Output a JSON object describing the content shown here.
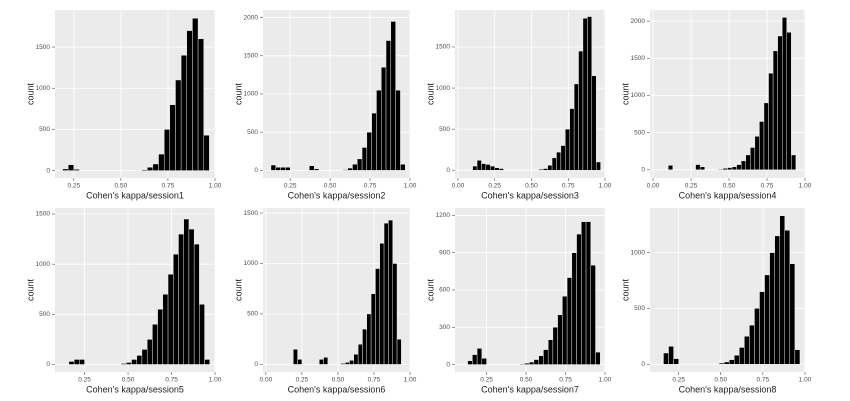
{
  "chart_data": [
    {
      "type": "histogram",
      "xlabel": "Cohen's kappa/session1",
      "ylabel": "count",
      "bins": [
        0.1,
        0.13,
        0.16,
        0.19,
        0.22,
        0.25,
        0.28,
        0.31,
        0.34,
        0.37,
        0.4,
        0.43,
        0.46,
        0.49,
        0.52,
        0.55,
        0.58,
        0.61,
        0.64,
        0.67,
        0.7,
        0.73,
        0.76,
        0.79,
        0.82,
        0.85,
        0.88,
        0.91,
        0.94,
        0.97,
        1.0
      ],
      "counts": [
        0,
        0,
        0,
        20,
        70,
        15,
        0,
        0,
        0,
        0,
        0,
        0,
        0,
        0,
        0,
        0,
        0,
        10,
        40,
        80,
        200,
        500,
        800,
        1100,
        1400,
        1700,
        1850,
        1600,
        430,
        0
      ],
      "color": "#000000",
      "xlim": [
        0.15,
        1.0
      ],
      "ylim": [
        -90,
        1950
      ],
      "xticks": [
        {
          "value": 0.25,
          "label": "0.25"
        },
        {
          "value": 0.5,
          "label": "0.50"
        },
        {
          "value": 0.75,
          "label": "0.75"
        },
        {
          "value": 1.0,
          "label": "1.00"
        }
      ],
      "yticks": [
        0,
        500,
        1000,
        1500
      ],
      "grid": true
    },
    {
      "type": "histogram",
      "xlabel": "Cohen's kappa/session2",
      "ylabel": "count",
      "bins": [
        0.1,
        0.13,
        0.16,
        0.19,
        0.22,
        0.25,
        0.28,
        0.31,
        0.34,
        0.37,
        0.4,
        0.43,
        0.46,
        0.49,
        0.52,
        0.55,
        0.58,
        0.61,
        0.64,
        0.67,
        0.7,
        0.73,
        0.76,
        0.79,
        0.82,
        0.85,
        0.88,
        0.91,
        0.94,
        0.97,
        1.0
      ],
      "counts": [
        0,
        70,
        40,
        40,
        40,
        0,
        0,
        0,
        0,
        60,
        20,
        0,
        0,
        0,
        0,
        0,
        10,
        30,
        80,
        150,
        300,
        500,
        750,
        1050,
        1350,
        1700,
        1950,
        1050,
        80,
        0
      ],
      "color": "#000000",
      "xlim": [
        0.08,
        1.0
      ],
      "ylim": [
        -100,
        2100
      ],
      "xticks": [
        {
          "value": 0.25,
          "label": "0.25"
        },
        {
          "value": 0.5,
          "label": "0.50"
        },
        {
          "value": 0.75,
          "label": "0.75"
        },
        {
          "value": 1.0,
          "label": "1.00"
        }
      ],
      "yticks": [
        0,
        500,
        1000,
        1500,
        2000
      ],
      "grid": true
    },
    {
      "type": "histogram",
      "xlabel": "Cohen's kappa/session3",
      "ylabel": "count",
      "bins": [
        0.1,
        0.13,
        0.16,
        0.19,
        0.22,
        0.25,
        0.28,
        0.31,
        0.34,
        0.37,
        0.4,
        0.43,
        0.46,
        0.49,
        0.52,
        0.55,
        0.58,
        0.61,
        0.64,
        0.67,
        0.7,
        0.73,
        0.76,
        0.79,
        0.82,
        0.85,
        0.88,
        0.91,
        0.94,
        0.97,
        1.0
      ],
      "counts": [
        50,
        120,
        80,
        70,
        50,
        30,
        20,
        0,
        0,
        0,
        0,
        0,
        0,
        0,
        0,
        10,
        20,
        60,
        150,
        220,
        300,
        500,
        750,
        1050,
        1450,
        1850,
        1870,
        1150,
        100,
        0
      ],
      "color": "#000000",
      "xlim": [
        -0.02,
        1.0
      ],
      "ylim": [
        -95,
        1950
      ],
      "xticks": [
        {
          "value": 0.0,
          "label": "0.00"
        },
        {
          "value": 0.25,
          "label": "0.25"
        },
        {
          "value": 0.5,
          "label": "0.50"
        },
        {
          "value": 0.75,
          "label": "0.75"
        },
        {
          "value": 1.0,
          "label": "1.00"
        }
      ],
      "yticks": [
        0,
        500,
        1000,
        1500
      ],
      "grid": true
    },
    {
      "type": "histogram",
      "xlabel": "Cohen's kappa/session4",
      "ylabel": "count",
      "bins": [
        0.1,
        0.13,
        0.16,
        0.19,
        0.22,
        0.25,
        0.28,
        0.31,
        0.34,
        0.37,
        0.4,
        0.43,
        0.46,
        0.49,
        0.52,
        0.55,
        0.58,
        0.61,
        0.64,
        0.67,
        0.7,
        0.73,
        0.76,
        0.79,
        0.82,
        0.85,
        0.88,
        0.91,
        0.94,
        0.97,
        1.0
      ],
      "counts": [
        60,
        0,
        0,
        0,
        0,
        0,
        70,
        40,
        0,
        0,
        0,
        10,
        20,
        30,
        40,
        70,
        120,
        200,
        300,
        450,
        650,
        900,
        1300,
        1600,
        1800,
        2050,
        1850,
        200,
        0,
        0
      ],
      "color": "#000000",
      "xlim": [
        -0.02,
        1.0
      ],
      "ylim": [
        -110,
        2150
      ],
      "xticks": [
        {
          "value": 0.0,
          "label": "0.00"
        },
        {
          "value": 0.25,
          "label": "0.25"
        },
        {
          "value": 0.5,
          "label": "0.50"
        },
        {
          "value": 0.75,
          "label": "0.75"
        },
        {
          "value": 1.0,
          "label": "1.00"
        }
      ],
      "yticks": [
        0,
        500,
        1000,
        1500,
        2000
      ],
      "grid": true
    },
    {
      "type": "histogram",
      "xlabel": "Cohen's kappa/session5",
      "ylabel": "count",
      "bins": [
        0.1,
        0.13,
        0.16,
        0.19,
        0.22,
        0.25,
        0.28,
        0.31,
        0.34,
        0.37,
        0.4,
        0.43,
        0.46,
        0.49,
        0.52,
        0.55,
        0.58,
        0.61,
        0.64,
        0.67,
        0.7,
        0.73,
        0.76,
        0.79,
        0.82,
        0.85,
        0.88,
        0.91,
        0.94,
        0.97,
        1.0
      ],
      "counts": [
        0,
        0,
        30,
        50,
        50,
        0,
        0,
        0,
        0,
        0,
        0,
        0,
        10,
        20,
        50,
        90,
        150,
        250,
        400,
        550,
        700,
        900,
        1100,
        1300,
        1450,
        1350,
        1200,
        600,
        50,
        0
      ],
      "color": "#000000",
      "xlim": [
        0.08,
        1.0
      ],
      "ylim": [
        -75,
        1560
      ],
      "xticks": [
        {
          "value": 0.25,
          "label": "0.25"
        },
        {
          "value": 0.5,
          "label": "0.50"
        },
        {
          "value": 0.75,
          "label": "0.75"
        },
        {
          "value": 1.0,
          "label": "1.00"
        }
      ],
      "yticks": [
        0,
        500,
        1000,
        1500
      ],
      "grid": true
    },
    {
      "type": "histogram",
      "xlabel": "Cohen's kappa/session6",
      "ylabel": "count",
      "bins": [
        0.1,
        0.13,
        0.16,
        0.19,
        0.22,
        0.25,
        0.28,
        0.31,
        0.34,
        0.37,
        0.4,
        0.43,
        0.46,
        0.49,
        0.52,
        0.55,
        0.58,
        0.61,
        0.64,
        0.67,
        0.7,
        0.73,
        0.76,
        0.79,
        0.82,
        0.85,
        0.88,
        0.91,
        0.94,
        0.97,
        1.0
      ],
      "counts": [
        0,
        0,
        0,
        150,
        50,
        0,
        0,
        0,
        0,
        50,
        70,
        0,
        0,
        0,
        10,
        20,
        40,
        100,
        200,
        350,
        500,
        700,
        950,
        1200,
        1400,
        1430,
        1000,
        250,
        0,
        0
      ],
      "color": "#000000",
      "xlim": [
        -0.02,
        1.0
      ],
      "ylim": [
        -75,
        1550
      ],
      "xticks": [
        {
          "value": 0.0,
          "label": "0.00"
        },
        {
          "value": 0.25,
          "label": "0.25"
        },
        {
          "value": 0.5,
          "label": "0.50"
        },
        {
          "value": 0.75,
          "label": "0.75"
        },
        {
          "value": 1.0,
          "label": "1.00"
        }
      ],
      "yticks": [
        0,
        500,
        1000,
        1500
      ],
      "grid": true
    },
    {
      "type": "histogram",
      "xlabel": "Cohen's kappa/session7",
      "ylabel": "count",
      "bins": [
        0.1,
        0.13,
        0.16,
        0.19,
        0.22,
        0.25,
        0.28,
        0.31,
        0.34,
        0.37,
        0.4,
        0.43,
        0.46,
        0.49,
        0.52,
        0.55,
        0.58,
        0.61,
        0.64,
        0.67,
        0.7,
        0.73,
        0.76,
        0.79,
        0.82,
        0.85,
        0.88,
        0.91,
        0.94,
        0.97,
        1.0
      ],
      "counts": [
        0,
        30,
        80,
        130,
        50,
        0,
        0,
        0,
        0,
        0,
        0,
        0,
        5,
        10,
        20,
        40,
        70,
        120,
        200,
        300,
        400,
        550,
        700,
        900,
        1050,
        1150,
        1150,
        800,
        100,
        0
      ],
      "color": "#000000",
      "xlim": [
        0.05,
        1.0
      ],
      "ylim": [
        -60,
        1260
      ],
      "xticks": [
        {
          "value": 0.25,
          "label": "0.25"
        },
        {
          "value": 0.5,
          "label": "0.50"
        },
        {
          "value": 0.75,
          "label": "0.75"
        },
        {
          "value": 1.0,
          "label": "1.00"
        }
      ],
      "yticks": [
        0,
        300,
        600,
        900,
        1200
      ],
      "grid": true
    },
    {
      "type": "histogram",
      "xlabel": "Cohen's kappa/session8",
      "ylabel": "count",
      "bins": [
        0.1,
        0.13,
        0.16,
        0.19,
        0.22,
        0.25,
        0.28,
        0.31,
        0.34,
        0.37,
        0.4,
        0.43,
        0.46,
        0.49,
        0.52,
        0.55,
        0.58,
        0.61,
        0.64,
        0.67,
        0.7,
        0.73,
        0.76,
        0.79,
        0.82,
        0.85,
        0.88,
        0.91,
        0.94,
        0.97,
        1.0
      ],
      "counts": [
        0,
        0,
        100,
        160,
        50,
        0,
        0,
        0,
        0,
        0,
        0,
        0,
        0,
        10,
        20,
        40,
        80,
        150,
        250,
        350,
        500,
        650,
        800,
        1000,
        1150,
        1330,
        1200,
        900,
        130,
        0
      ],
      "color": "#000000",
      "xlim": [
        0.08,
        1.0
      ],
      "ylim": [
        -70,
        1400
      ],
      "xticks": [
        {
          "value": 0.25,
          "label": "0.25"
        },
        {
          "value": 0.5,
          "label": "0.50"
        },
        {
          "value": 0.75,
          "label": "0.75"
        },
        {
          "value": 1.0,
          "label": "1.00"
        }
      ],
      "yticks": [
        0,
        500,
        1000
      ],
      "grid": true
    }
  ]
}
